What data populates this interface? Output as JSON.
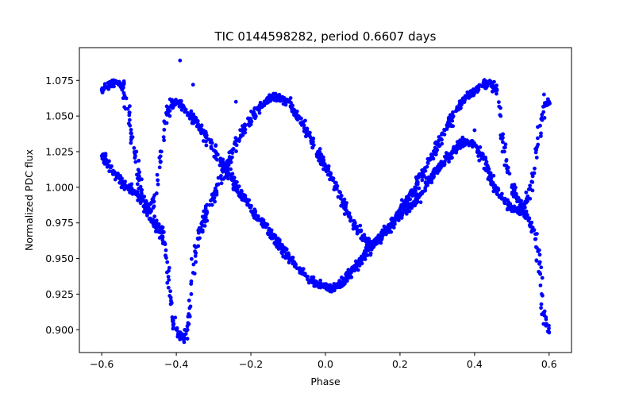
{
  "chart_data": {
    "type": "scatter",
    "title": "TIC 0144598282, period 0.6607 days",
    "xlabel": "Phase",
    "ylabel": "Normalized PDC flux",
    "xlim": [
      -0.66,
      0.66
    ],
    "ylim": [
      0.884,
      1.098
    ],
    "xticks": [
      -0.6,
      -0.4,
      -0.2,
      0.0,
      0.2,
      0.4,
      0.6
    ],
    "xtick_labels": [
      "−0.6",
      "−0.4",
      "−0.2",
      "0.0",
      "0.2",
      "0.4",
      "0.6"
    ],
    "yticks": [
      0.9,
      0.925,
      0.95,
      0.975,
      1.0,
      1.025,
      1.05,
      1.075
    ],
    "ytick_labels": [
      "0.900",
      "0.925",
      "0.950",
      "0.975",
      "1.000",
      "1.025",
      "1.050",
      "1.075"
    ],
    "grid": false,
    "marker_color": "#0000ff",
    "series": [
      {
        "curve_a": [
          [
            -0.6,
            1.068
          ],
          [
            -0.58,
            1.072
          ],
          [
            -0.56,
            1.074
          ],
          [
            -0.545,
            1.072
          ],
          [
            -0.53,
            1.055
          ],
          [
            -0.52,
            1.035
          ],
          [
            -0.51,
            1.022
          ],
          [
            -0.5,
            1.005
          ],
          [
            -0.49,
            0.992
          ],
          [
            -0.48,
            0.985
          ],
          [
            -0.47,
            0.984
          ],
          [
            -0.46,
            0.99
          ],
          [
            -0.45,
            1.005
          ],
          [
            -0.44,
            1.025
          ],
          [
            -0.43,
            1.045
          ],
          [
            -0.42,
            1.056
          ],
          [
            -0.4,
            1.06
          ],
          [
            -0.38,
            1.056
          ],
          [
            -0.36,
            1.05
          ],
          [
            -0.34,
            1.043
          ],
          [
            -0.32,
            1.035
          ],
          [
            -0.3,
            1.026
          ],
          [
            -0.28,
            1.018
          ],
          [
            -0.26,
            1.01
          ],
          [
            -0.24,
            1.0
          ],
          [
            -0.22,
            0.993
          ],
          [
            -0.2,
            0.986
          ],
          [
            -0.18,
            0.978
          ],
          [
            -0.16,
            0.972
          ],
          [
            -0.14,
            0.965
          ],
          [
            -0.12,
            0.958
          ],
          [
            -0.1,
            0.952
          ],
          [
            -0.08,
            0.946
          ],
          [
            -0.06,
            0.94
          ],
          [
            -0.04,
            0.935
          ],
          [
            -0.02,
            0.932
          ],
          [
            0.0,
            0.93
          ],
          [
            0.02,
            0.929
          ],
          [
            0.04,
            0.932
          ],
          [
            0.06,
            0.937
          ],
          [
            0.08,
            0.944
          ],
          [
            0.1,
            0.95
          ],
          [
            0.12,
            0.958
          ],
          [
            0.14,
            0.964
          ],
          [
            0.16,
            0.968
          ],
          [
            0.18,
            0.974
          ],
          [
            0.2,
            0.98
          ],
          [
            0.22,
            0.985
          ],
          [
            0.24,
            0.99
          ],
          [
            0.26,
            0.997
          ],
          [
            0.28,
            1.005
          ],
          [
            0.3,
            1.012
          ],
          [
            0.32,
            1.018
          ],
          [
            0.34,
            1.025
          ],
          [
            0.36,
            1.03
          ],
          [
            0.38,
            1.033
          ],
          [
            0.4,
            1.03
          ],
          [
            0.42,
            1.022
          ],
          [
            0.44,
            1.01
          ],
          [
            0.46,
            0.998
          ],
          [
            0.48,
            0.99
          ],
          [
            0.5,
            0.985
          ],
          [
            0.52,
            0.983
          ],
          [
            0.54,
            0.99
          ],
          [
            0.56,
            1.01
          ],
          [
            0.57,
            1.03
          ],
          [
            0.58,
            1.048
          ],
          [
            0.59,
            1.058
          ],
          [
            0.6,
            1.06
          ]
        ]
      },
      {
        "curve_b": [
          [
            -0.6,
            1.022
          ],
          [
            -0.58,
            1.015
          ],
          [
            -0.56,
            1.008
          ],
          [
            -0.54,
            1.002
          ],
          [
            -0.52,
            0.998
          ],
          [
            -0.5,
            0.993
          ],
          [
            -0.48,
            0.985
          ],
          [
            -0.46,
            0.975
          ],
          [
            -0.44,
            0.968
          ],
          [
            -0.43,
            0.96
          ],
          [
            -0.42,
            0.935
          ],
          [
            -0.415,
            0.918
          ],
          [
            -0.41,
            0.906
          ],
          [
            -0.4,
            0.9
          ],
          [
            -0.39,
            0.896
          ],
          [
            -0.38,
            0.895
          ],
          [
            -0.37,
            0.9
          ],
          [
            -0.365,
            0.91
          ],
          [
            -0.36,
            0.925
          ],
          [
            -0.355,
            0.94
          ],
          [
            -0.35,
            0.955
          ],
          [
            -0.34,
            0.968
          ],
          [
            -0.32,
            0.982
          ],
          [
            -0.3,
            0.995
          ],
          [
            -0.28,
            1.008
          ],
          [
            -0.26,
            1.018
          ],
          [
            -0.24,
            1.03
          ],
          [
            -0.22,
            1.04
          ],
          [
            -0.2,
            1.048
          ],
          [
            -0.18,
            1.055
          ],
          [
            -0.16,
            1.06
          ],
          [
            -0.14,
            1.063
          ],
          [
            -0.12,
            1.063
          ],
          [
            -0.1,
            1.06
          ],
          [
            -0.08,
            1.052
          ],
          [
            -0.06,
            1.044
          ],
          [
            -0.04,
            1.035
          ],
          [
            -0.02,
            1.025
          ],
          [
            0.0,
            1.015
          ],
          [
            0.02,
            1.005
          ],
          [
            0.04,
            0.993
          ],
          [
            0.06,
            0.982
          ],
          [
            0.08,
            0.972
          ],
          [
            0.1,
            0.965
          ],
          [
            0.12,
            0.96
          ],
          [
            0.14,
            0.962
          ],
          [
            0.16,
            0.968
          ],
          [
            0.18,
            0.975
          ],
          [
            0.2,
            0.983
          ],
          [
            0.22,
            0.992
          ],
          [
            0.24,
            1.0
          ],
          [
            0.26,
            1.01
          ],
          [
            0.28,
            1.02
          ],
          [
            0.3,
            1.03
          ],
          [
            0.32,
            1.04
          ],
          [
            0.34,
            1.05
          ],
          [
            0.36,
            1.058
          ],
          [
            0.38,
            1.064
          ],
          [
            0.4,
            1.068
          ],
          [
            0.42,
            1.071
          ],
          [
            0.44,
            1.073
          ],
          [
            0.46,
            1.068
          ],
          [
            0.47,
            1.05
          ],
          [
            0.48,
            1.025
          ],
          [
            0.5,
            1.0
          ],
          [
            0.52,
            0.99
          ],
          [
            0.54,
            0.98
          ],
          [
            0.56,
            0.97
          ],
          [
            0.57,
            0.955
          ],
          [
            0.575,
            0.94
          ],
          [
            0.58,
            0.925
          ],
          [
            0.585,
            0.912
          ],
          [
            0.59,
            0.904
          ],
          [
            0.6,
            0.898
          ]
        ]
      },
      {
        "outliers": [
          [
            -0.39,
            1.089
          ],
          [
            -0.355,
            1.072
          ],
          [
            -0.24,
            1.06
          ],
          [
            0.34,
            1.025
          ],
          [
            0.4,
            1.04
          ]
        ]
      }
    ]
  }
}
